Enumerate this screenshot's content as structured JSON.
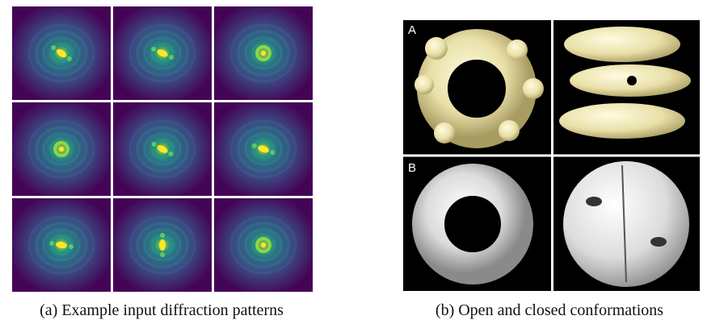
{
  "figure": {
    "subfigures": [
      {
        "caption": "(a) Example input diffraction patterns"
      },
      {
        "caption": "(b) Open and closed conformations",
        "panel_labels": [
          "A",
          "B"
        ]
      }
    ]
  }
}
